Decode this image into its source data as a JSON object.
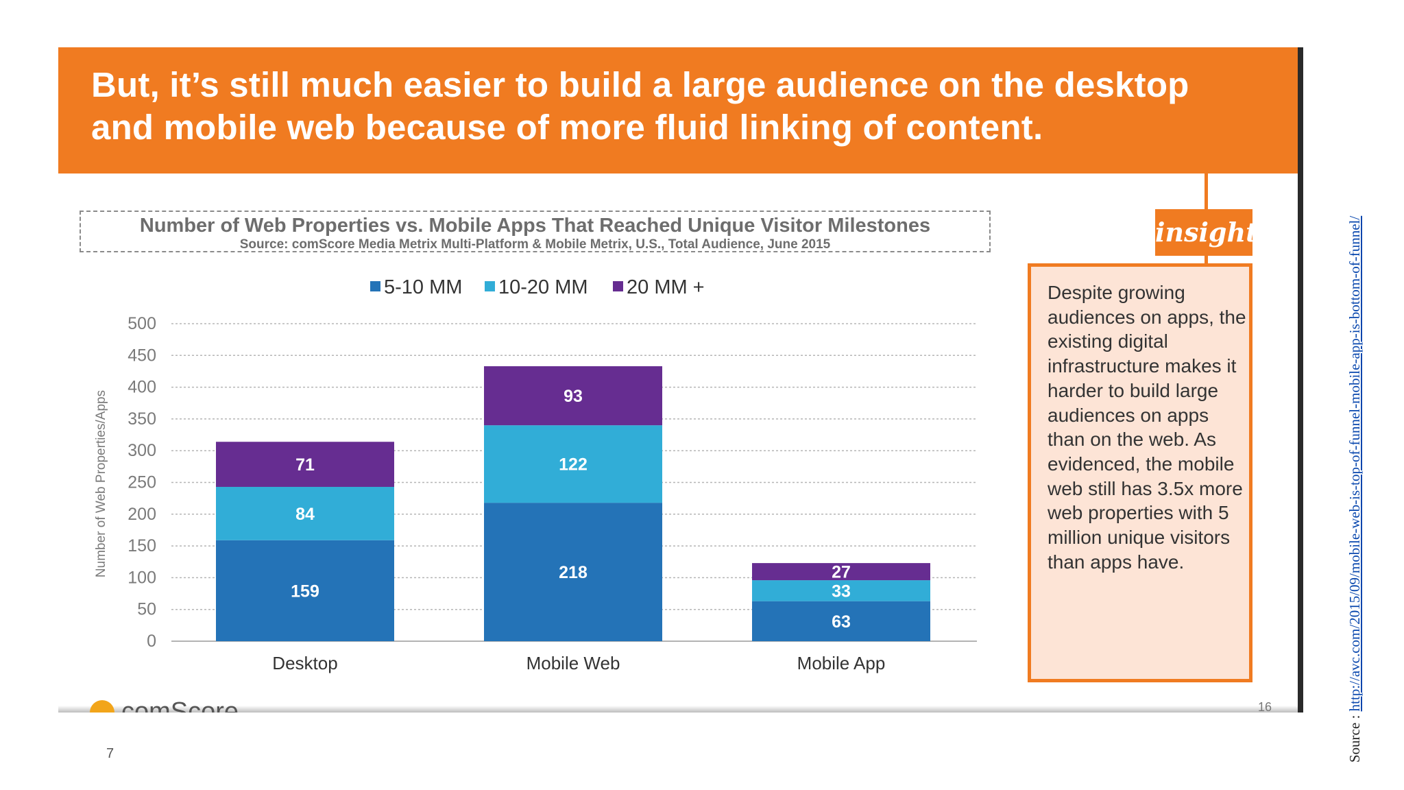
{
  "banner": {
    "title": "But, it’s still much easier to build a large audience on the desktop\nand mobile web because of more fluid linking of content."
  },
  "colors": {
    "banner": "#f07b21",
    "series_5_10": "#2473b7",
    "series_10_20": "#31add7",
    "series_20_plus": "#662d91"
  },
  "chart_data": {
    "type": "bar",
    "stacked": true,
    "title": "Number of Web Properties vs. Mobile Apps That Reached Unique Visitor Milestones",
    "subtitle": "Source: comScore Media Metrix Multi-Platform & Mobile Metrix, U.S., Total Audience, June 2015",
    "xlabel": "",
    "ylabel": "Number of Web Properties/Apps",
    "ylim": [
      0,
      500
    ],
    "yticks": [
      0,
      50,
      100,
      150,
      200,
      250,
      300,
      350,
      400,
      450,
      500
    ],
    "categories": [
      "Desktop",
      "Mobile Web",
      "Mobile App"
    ],
    "series": [
      {
        "name": "5-10 MM",
        "values": [
          159,
          218,
          63
        ],
        "color": "#2473b7"
      },
      {
        "name": "10-20 MM",
        "values": [
          84,
          122,
          33
        ],
        "color": "#31add7"
      },
      {
        "name": "20 MM +",
        "values": [
          71,
          93,
          27
        ],
        "color": "#662d91"
      }
    ],
    "grid": true,
    "legend": "top"
  },
  "insight": {
    "tag": "insight",
    "text": "Despite growing audiences on apps, the existing digital infrastructure makes it harder to build large audiences on apps than on the web. As evidenced, the mobile web still has 3.5x more web properties with 5 million unique visitors than apps have."
  },
  "footer": {
    "logo_text": "comScore",
    "slide_number": "16",
    "page_number": "7"
  },
  "source": {
    "label": "Source :",
    "url": "http://avc.com/2015/09/mobile-web-is-top-of-funnel-mobile-app-is-bottom-of-funnel/"
  }
}
